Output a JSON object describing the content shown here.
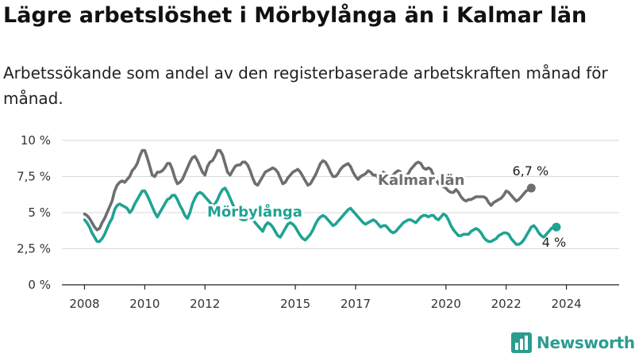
{
  "title": "Lägre arbetslöshet i Mörbylånga än i Kalmar län",
  "subtitle": "Arbetssökande som andel av den registerbaserade arbetskraften månad för månad.",
  "brand": {
    "name": "Newsworthy",
    "icon": "bar-chart-logo-icon",
    "color": "#2a9d8f"
  },
  "chart_data": {
    "type": "line",
    "x_start": "2008-01",
    "x_end": "2024-12",
    "xlim": [
      2007.25,
      2025.75
    ],
    "ylim": [
      0,
      10
    ],
    "y_ticks": [
      {
        "value": 0,
        "label": "0 %"
      },
      {
        "value": 2.5,
        "label": "2,5 %"
      },
      {
        "value": 5,
        "label": "5 %"
      },
      {
        "value": 7.5,
        "label": "7,5 %"
      },
      {
        "value": 10,
        "label": "10 %"
      }
    ],
    "x_ticks": [
      {
        "value": 2008,
        "label": "2008"
      },
      {
        "value": 2010,
        "label": "2010"
      },
      {
        "value": 2012,
        "label": "2012"
      },
      {
        "value": 2015,
        "label": "2015"
      },
      {
        "value": 2017,
        "label": "2017"
      },
      {
        "value": 2020,
        "label": "2020"
      },
      {
        "value": 2022,
        "label": "2022"
      },
      {
        "value": 2024,
        "label": "2024"
      }
    ],
    "grid": true,
    "legend": "inline labels",
    "series": [
      {
        "name": "Kalmar län",
        "color": "#6e6e70",
        "end_label": "6,7 %",
        "values": [
          4.9,
          4.8,
          4.6,
          4.3,
          4.0,
          3.8,
          3.9,
          4.3,
          4.6,
          5.0,
          5.4,
          5.8,
          6.5,
          6.9,
          7.1,
          7.2,
          7.1,
          7.3,
          7.5,
          7.9,
          8.1,
          8.4,
          8.9,
          9.3,
          9.3,
          8.8,
          8.2,
          7.6,
          7.5,
          7.8,
          7.8,
          7.9,
          8.1,
          8.4,
          8.4,
          8.0,
          7.4,
          7.0,
          7.1,
          7.3,
          7.7,
          8.1,
          8.5,
          8.8,
          8.9,
          8.6,
          8.2,
          7.8,
          7.6,
          8.2,
          8.5,
          8.6,
          8.9,
          9.3,
          9.3,
          9.0,
          8.4,
          7.8,
          7.6,
          7.9,
          8.2,
          8.3,
          8.3,
          8.5,
          8.5,
          8.3,
          7.9,
          7.4,
          7.0,
          6.9,
          7.2,
          7.5,
          7.8,
          7.9,
          8.0,
          8.1,
          8.0,
          7.8,
          7.4,
          7.0,
          7.1,
          7.4,
          7.6,
          7.8,
          7.9,
          8.0,
          7.8,
          7.5,
          7.2,
          6.9,
          7.0,
          7.3,
          7.6,
          8.0,
          8.4,
          8.6,
          8.5,
          8.2,
          7.8,
          7.5,
          7.5,
          7.7,
          8.0,
          8.2,
          8.3,
          8.4,
          8.2,
          7.8,
          7.5,
          7.3,
          7.5,
          7.6,
          7.7,
          7.9,
          7.8,
          7.6,
          7.6,
          7.4,
          7.5,
          7.8,
          7.7,
          7.6,
          7.5,
          7.6,
          7.8,
          7.9,
          7.8,
          7.6,
          7.5,
          7.7,
          8.0,
          8.2,
          8.4,
          8.5,
          8.4,
          8.1,
          8.0,
          8.1,
          8.0,
          7.6,
          7.3,
          7.0,
          6.9,
          6.8,
          6.7,
          6.5,
          6.4,
          6.4,
          6.6,
          6.4,
          6.1,
          5.9,
          5.8,
          5.9,
          5.9,
          6.0,
          6.1,
          6.1,
          6.1,
          6.1,
          6.0,
          5.7,
          5.5,
          5.7,
          5.8,
          5.9,
          6.0,
          6.2,
          6.5,
          6.4,
          6.2,
          6.0,
          5.8,
          5.9,
          6.1,
          6.3,
          6.5,
          6.6,
          6.7
        ]
      },
      {
        "name": "Mörbylånga",
        "color": "#1fa393",
        "end_label": "4 %",
        "values": [
          4.5,
          4.3,
          4.0,
          3.6,
          3.3,
          3.0,
          3.0,
          3.2,
          3.5,
          3.9,
          4.3,
          4.6,
          5.2,
          5.5,
          5.6,
          5.5,
          5.4,
          5.3,
          5.0,
          5.2,
          5.6,
          5.9,
          6.2,
          6.5,
          6.5,
          6.2,
          5.8,
          5.4,
          5.0,
          4.7,
          5.0,
          5.3,
          5.6,
          5.9,
          6.0,
          6.2,
          6.2,
          5.9,
          5.5,
          5.2,
          4.8,
          4.6,
          5.0,
          5.6,
          6.0,
          6.3,
          6.4,
          6.3,
          6.1,
          5.9,
          5.7,
          5.5,
          5.6,
          5.9,
          6.3,
          6.6,
          6.7,
          6.4,
          6.0,
          5.6,
          5.2,
          4.8,
          4.6,
          4.5,
          4.5,
          4.6,
          4.6,
          4.5,
          4.3,
          4.1,
          3.9,
          3.7,
          4.1,
          4.3,
          4.2,
          4.0,
          3.7,
          3.4,
          3.3,
          3.6,
          3.9,
          4.2,
          4.3,
          4.2,
          4.0,
          3.7,
          3.4,
          3.2,
          3.1,
          3.3,
          3.5,
          3.8,
          4.2,
          4.5,
          4.7,
          4.8,
          4.7,
          4.5,
          4.3,
          4.1,
          4.2,
          4.4,
          4.6,
          4.8,
          5.0,
          5.2,
          5.3,
          5.1,
          4.9,
          4.7,
          4.5,
          4.3,
          4.2,
          4.3,
          4.4,
          4.5,
          4.4,
          4.2,
          4.0,
          4.1,
          4.1,
          3.9,
          3.7,
          3.6,
          3.7,
          3.9,
          4.1,
          4.3,
          4.4,
          4.5,
          4.5,
          4.4,
          4.3,
          4.5,
          4.7,
          4.8,
          4.8,
          4.7,
          4.8,
          4.8,
          4.6,
          4.5,
          4.7,
          4.9,
          4.8,
          4.5,
          4.1,
          3.8,
          3.6,
          3.4,
          3.4,
          3.5,
          3.5,
          3.5,
          3.7,
          3.8,
          3.9,
          3.8,
          3.6,
          3.3,
          3.1,
          3.0,
          3.0,
          3.1,
          3.2,
          3.4,
          3.5,
          3.6,
          3.6,
          3.5,
          3.2,
          3.0,
          2.8,
          2.8,
          2.9,
          3.1,
          3.4,
          3.7,
          4.0,
          4.1,
          3.9,
          3.6,
          3.4,
          3.3,
          3.5,
          3.7,
          3.9,
          4.0,
          4.0
        ]
      }
    ]
  }
}
